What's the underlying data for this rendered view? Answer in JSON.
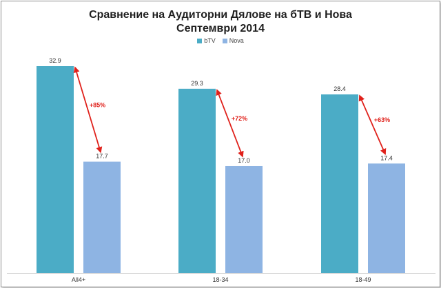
{
  "title_line1": "Сравнение на Аудиторни Дялове на бТВ и Нова",
  "title_line2": "Септември 2014",
  "chart_data": {
    "type": "bar",
    "categories": [
      "All4+",
      "18-34",
      "18-49"
    ],
    "series": [
      {
        "name": "bTV",
        "values": [
          32.9,
          29.3,
          28.4
        ],
        "color": "#4bacc6"
      },
      {
        "name": "Nova",
        "values": [
          17.7,
          17.0,
          17.4
        ],
        "color": "#8eb4e3"
      }
    ],
    "value_labels": [
      [
        "32.9",
        "29.3",
        "28.4"
      ],
      [
        "17.7",
        "17.0",
        "17.4"
      ]
    ],
    "annotations": [
      "+85%",
      "+72%",
      "+63%"
    ],
    "annotation_color": "#e0211b",
    "ylim": [
      0,
      35
    ],
    "grid": false,
    "legend": "top-center",
    "xlabel": "",
    "ylabel": ""
  }
}
